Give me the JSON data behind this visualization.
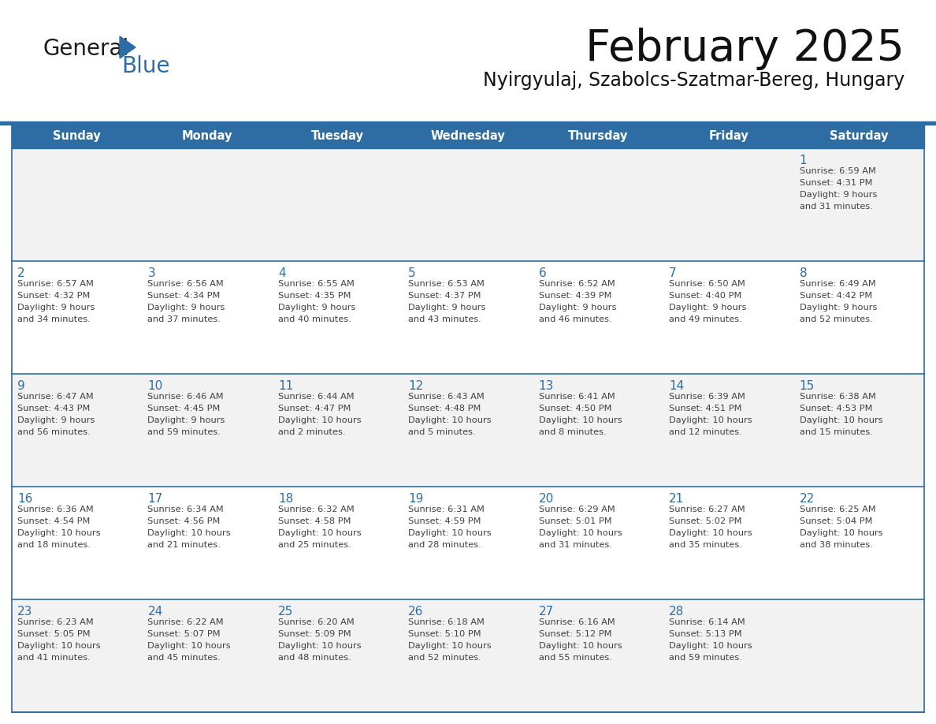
{
  "title": "February 2025",
  "subtitle": "Nyirgyulaj, Szabolcs-Szatmar-Bereg, Hungary",
  "header_bg": "#2E6DA4",
  "header_text": "#FFFFFF",
  "cell_bg_odd": "#F2F2F2",
  "cell_bg_even": "#FFFFFF",
  "border_color": "#2E6DA4",
  "text_color": "#404040",
  "day_number_color": "#2E6DA4",
  "logo_black": "#1a1a1a",
  "logo_blue": "#2E6DA4",
  "days_of_week": [
    "Sunday",
    "Monday",
    "Tuesday",
    "Wednesday",
    "Thursday",
    "Friday",
    "Saturday"
  ],
  "calendar_data": [
    [
      null,
      null,
      null,
      null,
      null,
      null,
      {
        "day": "1",
        "sunrise": "6:59 AM",
        "sunset": "4:31 PM",
        "daylight_line1": "Daylight: 9 hours",
        "daylight_line2": "and 31 minutes."
      }
    ],
    [
      {
        "day": "2",
        "sunrise": "6:57 AM",
        "sunset": "4:32 PM",
        "daylight_line1": "Daylight: 9 hours",
        "daylight_line2": "and 34 minutes."
      },
      {
        "day": "3",
        "sunrise": "6:56 AM",
        "sunset": "4:34 PM",
        "daylight_line1": "Daylight: 9 hours",
        "daylight_line2": "and 37 minutes."
      },
      {
        "day": "4",
        "sunrise": "6:55 AM",
        "sunset": "4:35 PM",
        "daylight_line1": "Daylight: 9 hours",
        "daylight_line2": "and 40 minutes."
      },
      {
        "day": "5",
        "sunrise": "6:53 AM",
        "sunset": "4:37 PM",
        "daylight_line1": "Daylight: 9 hours",
        "daylight_line2": "and 43 minutes."
      },
      {
        "day": "6",
        "sunrise": "6:52 AM",
        "sunset": "4:39 PM",
        "daylight_line1": "Daylight: 9 hours",
        "daylight_line2": "and 46 minutes."
      },
      {
        "day": "7",
        "sunrise": "6:50 AM",
        "sunset": "4:40 PM",
        "daylight_line1": "Daylight: 9 hours",
        "daylight_line2": "and 49 minutes."
      },
      {
        "day": "8",
        "sunrise": "6:49 AM",
        "sunset": "4:42 PM",
        "daylight_line1": "Daylight: 9 hours",
        "daylight_line2": "and 52 minutes."
      }
    ],
    [
      {
        "day": "9",
        "sunrise": "6:47 AM",
        "sunset": "4:43 PM",
        "daylight_line1": "Daylight: 9 hours",
        "daylight_line2": "and 56 minutes."
      },
      {
        "day": "10",
        "sunrise": "6:46 AM",
        "sunset": "4:45 PM",
        "daylight_line1": "Daylight: 9 hours",
        "daylight_line2": "and 59 minutes."
      },
      {
        "day": "11",
        "sunrise": "6:44 AM",
        "sunset": "4:47 PM",
        "daylight_line1": "Daylight: 10 hours",
        "daylight_line2": "and 2 minutes."
      },
      {
        "day": "12",
        "sunrise": "6:43 AM",
        "sunset": "4:48 PM",
        "daylight_line1": "Daylight: 10 hours",
        "daylight_line2": "and 5 minutes."
      },
      {
        "day": "13",
        "sunrise": "6:41 AM",
        "sunset": "4:50 PM",
        "daylight_line1": "Daylight: 10 hours",
        "daylight_line2": "and 8 minutes."
      },
      {
        "day": "14",
        "sunrise": "6:39 AM",
        "sunset": "4:51 PM",
        "daylight_line1": "Daylight: 10 hours",
        "daylight_line2": "and 12 minutes."
      },
      {
        "day": "15",
        "sunrise": "6:38 AM",
        "sunset": "4:53 PM",
        "daylight_line1": "Daylight: 10 hours",
        "daylight_line2": "and 15 minutes."
      }
    ],
    [
      {
        "day": "16",
        "sunrise": "6:36 AM",
        "sunset": "4:54 PM",
        "daylight_line1": "Daylight: 10 hours",
        "daylight_line2": "and 18 minutes."
      },
      {
        "day": "17",
        "sunrise": "6:34 AM",
        "sunset": "4:56 PM",
        "daylight_line1": "Daylight: 10 hours",
        "daylight_line2": "and 21 minutes."
      },
      {
        "day": "18",
        "sunrise": "6:32 AM",
        "sunset": "4:58 PM",
        "daylight_line1": "Daylight: 10 hours",
        "daylight_line2": "and 25 minutes."
      },
      {
        "day": "19",
        "sunrise": "6:31 AM",
        "sunset": "4:59 PM",
        "daylight_line1": "Daylight: 10 hours",
        "daylight_line2": "and 28 minutes."
      },
      {
        "day": "20",
        "sunrise": "6:29 AM",
        "sunset": "5:01 PM",
        "daylight_line1": "Daylight: 10 hours",
        "daylight_line2": "and 31 minutes."
      },
      {
        "day": "21",
        "sunrise": "6:27 AM",
        "sunset": "5:02 PM",
        "daylight_line1": "Daylight: 10 hours",
        "daylight_line2": "and 35 minutes."
      },
      {
        "day": "22",
        "sunrise": "6:25 AM",
        "sunset": "5:04 PM",
        "daylight_line1": "Daylight: 10 hours",
        "daylight_line2": "and 38 minutes."
      }
    ],
    [
      {
        "day": "23",
        "sunrise": "6:23 AM",
        "sunset": "5:05 PM",
        "daylight_line1": "Daylight: 10 hours",
        "daylight_line2": "and 41 minutes."
      },
      {
        "day": "24",
        "sunrise": "6:22 AM",
        "sunset": "5:07 PM",
        "daylight_line1": "Daylight: 10 hours",
        "daylight_line2": "and 45 minutes."
      },
      {
        "day": "25",
        "sunrise": "6:20 AM",
        "sunset": "5:09 PM",
        "daylight_line1": "Daylight: 10 hours",
        "daylight_line2": "and 48 minutes."
      },
      {
        "day": "26",
        "sunrise": "6:18 AM",
        "sunset": "5:10 PM",
        "daylight_line1": "Daylight: 10 hours",
        "daylight_line2": "and 52 minutes."
      },
      {
        "day": "27",
        "sunrise": "6:16 AM",
        "sunset": "5:12 PM",
        "daylight_line1": "Daylight: 10 hours",
        "daylight_line2": "and 55 minutes."
      },
      {
        "day": "28",
        "sunrise": "6:14 AM",
        "sunset": "5:13 PM",
        "daylight_line1": "Daylight: 10 hours",
        "daylight_line2": "and 59 minutes."
      },
      null
    ]
  ]
}
